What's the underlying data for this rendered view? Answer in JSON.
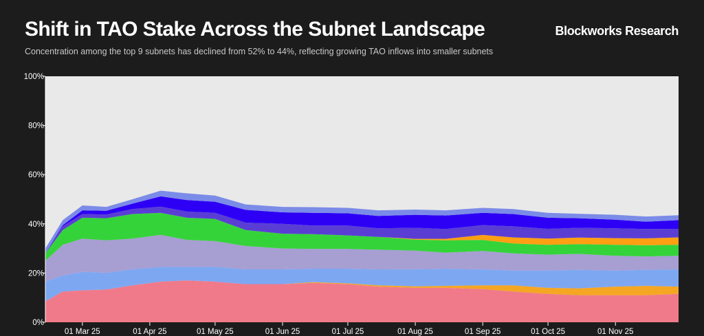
{
  "header": {
    "title": "Shift in TAO Stake Across the Subnet Landscape",
    "subtitle": "Concentration among the top 9 subnets has declined from 52% to 44%, reflecting growing TAO inflows into smaller subnets",
    "brand": "Blockworks Research"
  },
  "colors": {
    "background": "#1c1c1c",
    "plot_background": "#e9e9e9",
    "axis_text": "#ffffff"
  },
  "chart_data": {
    "type": "area",
    "stacked": true,
    "title": "Shift in TAO Stake Across the Subnet Landscape",
    "subtitle": "Concentration among the top 9 subnets has declined from 52% to 44%, reflecting growing TAO inflows into smaller subnets",
    "xlabel": "",
    "ylabel": "",
    "x_range": [
      "2025-02-12",
      "2025-11-30"
    ],
    "ylim": [
      0,
      100
    ],
    "yticks": [
      0,
      20,
      40,
      60,
      80,
      100
    ],
    "ytick_labels": [
      "0%",
      "20%",
      "40%",
      "60%",
      "80%",
      "100%"
    ],
    "xticks": [
      "2025-03-01",
      "2025-04-01",
      "2025-05-01",
      "2025-06-01",
      "2025-07-01",
      "2025-08-01",
      "2025-09-01",
      "2025-10-01",
      "2025-11-01"
    ],
    "xtick_labels": [
      "01 Mar 25",
      "01 Apr 25",
      "01 May 25",
      "01 Jun 25",
      "01 Jul 25",
      "01 Aug 25",
      "01 Sep 25",
      "01 Oct 25",
      "01 Nov 25"
    ],
    "grid": false,
    "legend": "none",
    "x": [
      "2025-02-12",
      "2025-02-20",
      "2025-03-01",
      "2025-03-12",
      "2025-03-24",
      "2025-04-06",
      "2025-04-18",
      "2025-05-01",
      "2025-05-15",
      "2025-06-01",
      "2025-06-15",
      "2025-07-01",
      "2025-07-15",
      "2025-08-01",
      "2025-08-15",
      "2025-09-01",
      "2025-09-15",
      "2025-10-01",
      "2025-10-15",
      "2025-11-01",
      "2025-11-15",
      "2025-11-30"
    ],
    "series": [
      {
        "color": "#f07a8a",
        "values": [
          8.5,
          12.5,
          13,
          13.3,
          15,
          16.5,
          17,
          16.5,
          15.5,
          15.5,
          16,
          15.5,
          14.5,
          14,
          14,
          13.5,
          12.5,
          11.5,
          11,
          11,
          11,
          11.5
        ]
      },
      {
        "color": "#f5a623",
        "values": [
          0,
          0,
          0,
          0,
          0,
          0,
          0,
          0,
          0,
          0,
          0.3,
          0.3,
          0.5,
          0.6,
          0.8,
          1.5,
          2.5,
          2.5,
          2.8,
          3.5,
          3.8,
          3
        ]
      },
      {
        "color": "#7ea7f2",
        "values": [
          8,
          6.5,
          7.5,
          6.8,
          6.5,
          6,
          5.5,
          6,
          6,
          6,
          5.5,
          6,
          6.5,
          7,
          7,
          6.5,
          6,
          7,
          7.5,
          6.5,
          6.5,
          7
        ]
      },
      {
        "color": "#a79ed2",
        "values": [
          8.5,
          12.5,
          13.5,
          13.2,
          12.5,
          13,
          11,
          10.5,
          9.5,
          8.5,
          8,
          8,
          8,
          7.5,
          6.5,
          7.5,
          7,
          6.5,
          6.5,
          6,
          5.5,
          5.5
        ]
      },
      {
        "color": "#35d33a",
        "values": [
          3,
          6,
          8.5,
          9,
          10,
          9,
          9,
          9,
          6.5,
          6,
          6,
          5.5,
          5.2,
          4.5,
          5,
          4.5,
          4,
          4,
          4,
          4.5,
          4.5,
          4.5
        ]
      },
      {
        "color": "#ff9f12",
        "values": [
          0,
          0,
          0,
          0,
          0,
          0,
          0,
          0,
          0,
          0,
          0,
          0,
          0,
          0.3,
          0.6,
          2,
          2.5,
          2.5,
          2.6,
          2.7,
          2.8,
          3
        ]
      },
      {
        "color": "#5a3ed4",
        "values": [
          0,
          1.5,
          1.5,
          1.5,
          2,
          2.5,
          2.5,
          2.5,
          3,
          4,
          3.5,
          4,
          3.5,
          4.5,
          4,
          4,
          4.5,
          4,
          4,
          4,
          3.8,
          3.5
        ]
      },
      {
        "color": "#2d00f5",
        "values": [
          0,
          0.5,
          1.5,
          1.5,
          2.2,
          4.2,
          4.7,
          4.5,
          5.2,
          4.7,
          5.2,
          5,
          5,
          5.3,
          5.5,
          5,
          5,
          4.5,
          3.9,
          3.5,
          3,
          3.5
        ]
      },
      {
        "color": "#7b8be8",
        "values": [
          2,
          2,
          2,
          1.6,
          1.8,
          2.3,
          2.7,
          2.5,
          2.2,
          2.2,
          2.3,
          2.2,
          2.3,
          2.1,
          2.1,
          2,
          2,
          2,
          1.8,
          2,
          2.1,
          2
        ]
      }
    ]
  }
}
